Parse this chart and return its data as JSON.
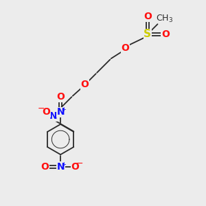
{
  "background_color": "#ececec",
  "bond_color": "#2a2a2a",
  "atom_colors": {
    "O": "#ff1010",
    "N": "#1010ff",
    "S": "#cccc00",
    "H": "#888888",
    "C": "#2a2a2a"
  },
  "font_size": 10,
  "figsize": [
    3.0,
    3.0
  ],
  "dpi": 100
}
